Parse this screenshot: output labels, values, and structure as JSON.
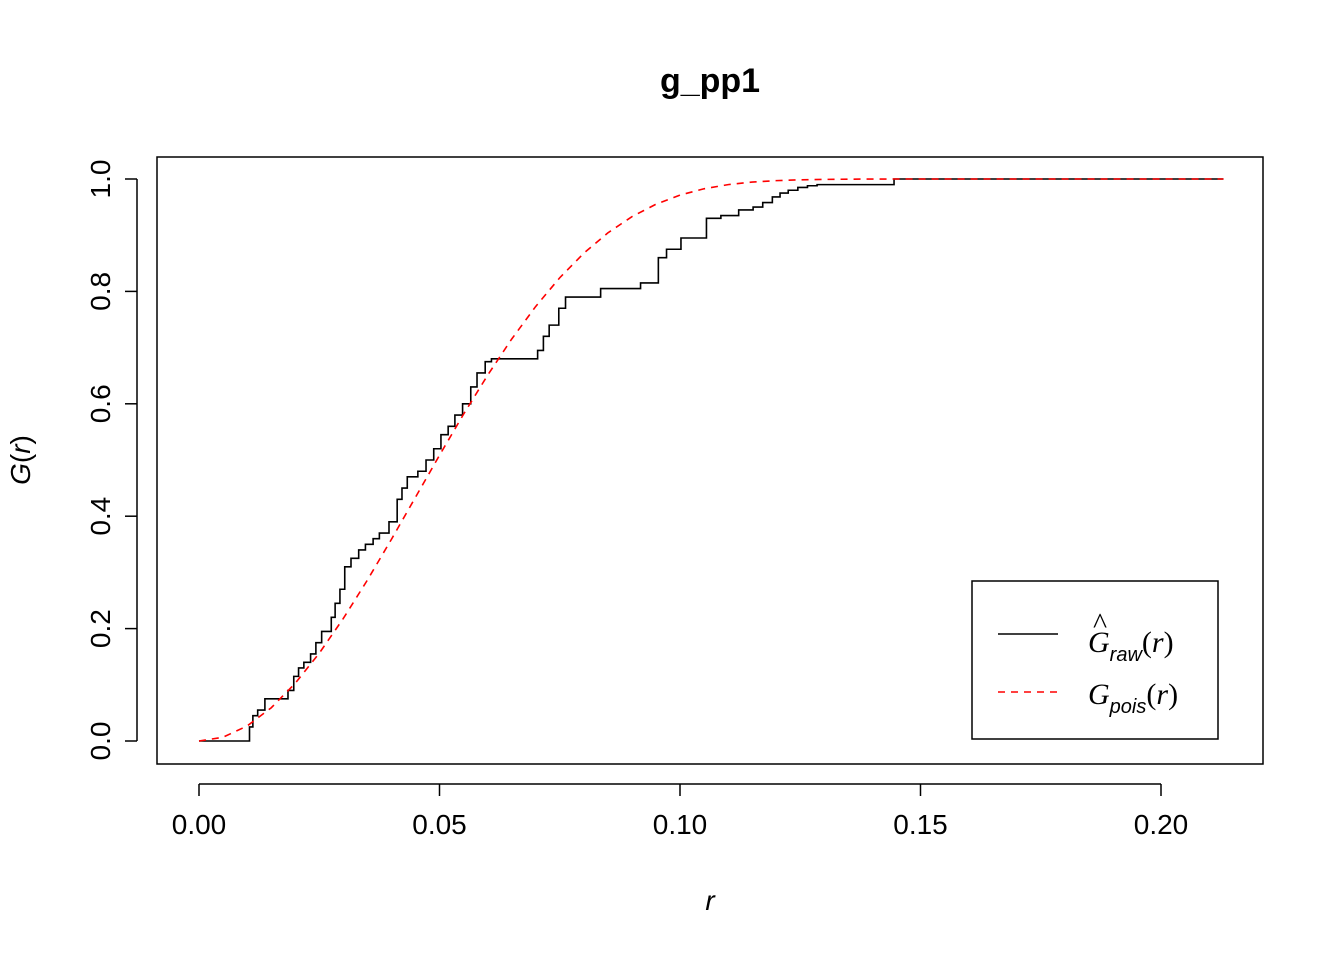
{
  "chart_data": {
    "type": "line",
    "title": "g_pp1",
    "xlabel_var": "r",
    "ylabel": {
      "func": "G",
      "paren_open": "(",
      "var": "r",
      "paren_close": ")"
    },
    "xlim": [
      0.0,
      0.213
    ],
    "ylim": [
      0.0,
      1.0
    ],
    "x_ticks": [
      0.0,
      0.05,
      0.1,
      0.15,
      0.2
    ],
    "x_tick_labels": [
      "0.00",
      "0.05",
      "0.10",
      "0.15",
      "0.20"
    ],
    "y_ticks": [
      0.0,
      0.2,
      0.4,
      0.6,
      0.8,
      1.0
    ],
    "y_tick_labels": [
      "0.0",
      "0.2",
      "0.4",
      "0.6",
      "0.8",
      "1.0"
    ],
    "grid": false,
    "legend_position": "bottom-right",
    "series": [
      {
        "name": "Ĝraw(r)",
        "legend": {
          "hat": "^",
          "func": "G",
          "sub": "raw",
          "arg_open": "(",
          "arg_var": "r",
          "arg_close": ")"
        },
        "style": "step",
        "color": "#000000",
        "dash": "solid",
        "x": [
          0.0,
          0.0105,
          0.0112,
          0.0122,
          0.0137,
          0.0185,
          0.0197,
          0.0207,
          0.0218,
          0.0232,
          0.0243,
          0.0255,
          0.0275,
          0.0283,
          0.0293,
          0.0303,
          0.0316,
          0.0332,
          0.0346,
          0.0362,
          0.0375,
          0.0395,
          0.0412,
          0.0422,
          0.0433,
          0.0455,
          0.0472,
          0.0488,
          0.0503,
          0.0518,
          0.0532,
          0.0548,
          0.0565,
          0.0578,
          0.0595,
          0.0608,
          0.0618,
          0.0704,
          0.0716,
          0.0728,
          0.0748,
          0.0762,
          0.0778,
          0.0835,
          0.0918,
          0.0955,
          0.0972,
          0.1002,
          0.1055,
          0.1085,
          0.1122,
          0.1152,
          0.1172,
          0.1192,
          0.1208,
          0.1225,
          0.1245,
          0.1265,
          0.1285,
          0.1445,
          0.213
        ],
        "y": [
          0.0,
          0.025,
          0.045,
          0.055,
          0.075,
          0.09,
          0.115,
          0.13,
          0.14,
          0.155,
          0.175,
          0.195,
          0.22,
          0.245,
          0.27,
          0.31,
          0.325,
          0.34,
          0.35,
          0.36,
          0.37,
          0.39,
          0.43,
          0.45,
          0.47,
          0.48,
          0.5,
          0.52,
          0.545,
          0.56,
          0.58,
          0.6,
          0.63,
          0.655,
          0.675,
          0.68,
          0.68,
          0.695,
          0.72,
          0.74,
          0.77,
          0.79,
          0.79,
          0.805,
          0.815,
          0.86,
          0.875,
          0.895,
          0.93,
          0.935,
          0.945,
          0.95,
          0.958,
          0.968,
          0.975,
          0.98,
          0.985,
          0.988,
          0.99,
          1.0,
          1.0
        ]
      },
      {
        "name": "Gpois(r)",
        "legend": {
          "hat": "",
          "func": "G",
          "sub": "pois",
          "arg_open": "(",
          "arg_var": "r",
          "arg_close": ")"
        },
        "style": "line",
        "color": "#ff0000",
        "dash": "dashed",
        "x": [
          0.0,
          0.005,
          0.01,
          0.015,
          0.02,
          0.025,
          0.03,
          0.035,
          0.04,
          0.045,
          0.05,
          0.055,
          0.06,
          0.065,
          0.07,
          0.075,
          0.08,
          0.085,
          0.09,
          0.095,
          0.1,
          0.105,
          0.11,
          0.115,
          0.12,
          0.125,
          0.13,
          0.135,
          0.14,
          0.145,
          0.15,
          0.155,
          0.16,
          0.165,
          0.17,
          0.175,
          0.18,
          0.185,
          0.19,
          0.195,
          0.2,
          0.205,
          0.213
        ],
        "y": [
          0.0,
          0.0067,
          0.0267,
          0.059,
          0.1026,
          0.1562,
          0.218,
          0.2862,
          0.3588,
          0.4336,
          0.5084,
          0.5814,
          0.6508,
          0.7151,
          0.7732,
          0.8243,
          0.868,
          0.9041,
          0.933,
          0.9551,
          0.9714,
          0.9826,
          0.99,
          0.9945,
          0.9971,
          0.9986,
          0.9993,
          0.9997,
          0.9999,
          1.0,
          1.0,
          1.0,
          1.0,
          1.0,
          1.0,
          1.0,
          1.0,
          1.0,
          1.0,
          1.0,
          1.0,
          1.0,
          1.0
        ]
      }
    ]
  }
}
